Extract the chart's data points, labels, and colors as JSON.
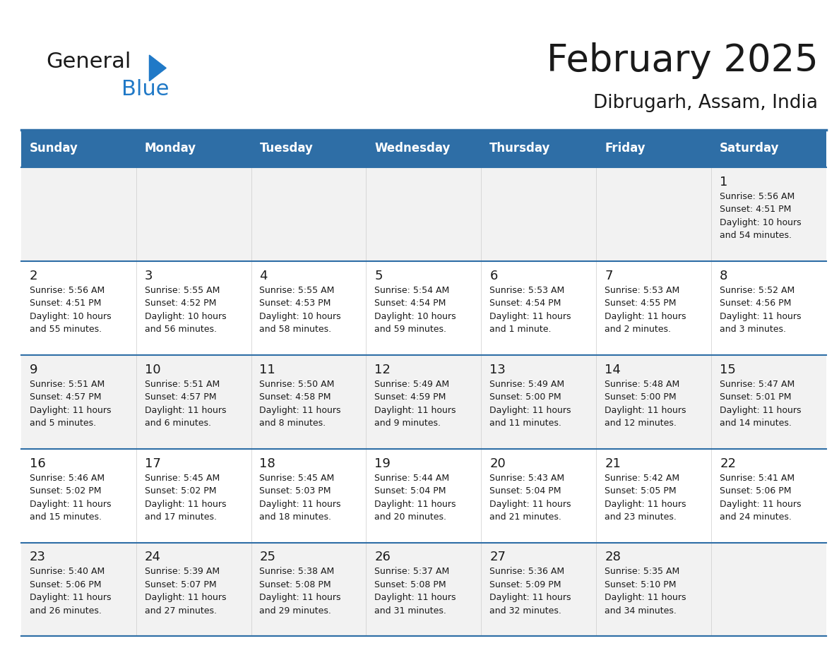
{
  "title": "February 2025",
  "subtitle": "Dibrugarh, Assam, India",
  "header_bg": "#2E6EA6",
  "header_text_color": "#FFFFFF",
  "cell_bg_odd": "#F2F2F2",
  "cell_bg_even": "#FFFFFF",
  "border_color": "#2E6EA6",
  "text_color": "#1a1a1a",
  "day_headers": [
    "Sunday",
    "Monday",
    "Tuesday",
    "Wednesday",
    "Thursday",
    "Friday",
    "Saturday"
  ],
  "weeks": [
    [
      {
        "day": "",
        "info": ""
      },
      {
        "day": "",
        "info": ""
      },
      {
        "day": "",
        "info": ""
      },
      {
        "day": "",
        "info": ""
      },
      {
        "day": "",
        "info": ""
      },
      {
        "day": "",
        "info": ""
      },
      {
        "day": "1",
        "info": "Sunrise: 5:56 AM\nSunset: 4:51 PM\nDaylight: 10 hours\nand 54 minutes."
      }
    ],
    [
      {
        "day": "2",
        "info": "Sunrise: 5:56 AM\nSunset: 4:51 PM\nDaylight: 10 hours\nand 55 minutes."
      },
      {
        "day": "3",
        "info": "Sunrise: 5:55 AM\nSunset: 4:52 PM\nDaylight: 10 hours\nand 56 minutes."
      },
      {
        "day": "4",
        "info": "Sunrise: 5:55 AM\nSunset: 4:53 PM\nDaylight: 10 hours\nand 58 minutes."
      },
      {
        "day": "5",
        "info": "Sunrise: 5:54 AM\nSunset: 4:54 PM\nDaylight: 10 hours\nand 59 minutes."
      },
      {
        "day": "6",
        "info": "Sunrise: 5:53 AM\nSunset: 4:54 PM\nDaylight: 11 hours\nand 1 minute."
      },
      {
        "day": "7",
        "info": "Sunrise: 5:53 AM\nSunset: 4:55 PM\nDaylight: 11 hours\nand 2 minutes."
      },
      {
        "day": "8",
        "info": "Sunrise: 5:52 AM\nSunset: 4:56 PM\nDaylight: 11 hours\nand 3 minutes."
      }
    ],
    [
      {
        "day": "9",
        "info": "Sunrise: 5:51 AM\nSunset: 4:57 PM\nDaylight: 11 hours\nand 5 minutes."
      },
      {
        "day": "10",
        "info": "Sunrise: 5:51 AM\nSunset: 4:57 PM\nDaylight: 11 hours\nand 6 minutes."
      },
      {
        "day": "11",
        "info": "Sunrise: 5:50 AM\nSunset: 4:58 PM\nDaylight: 11 hours\nand 8 minutes."
      },
      {
        "day": "12",
        "info": "Sunrise: 5:49 AM\nSunset: 4:59 PM\nDaylight: 11 hours\nand 9 minutes."
      },
      {
        "day": "13",
        "info": "Sunrise: 5:49 AM\nSunset: 5:00 PM\nDaylight: 11 hours\nand 11 minutes."
      },
      {
        "day": "14",
        "info": "Sunrise: 5:48 AM\nSunset: 5:00 PM\nDaylight: 11 hours\nand 12 minutes."
      },
      {
        "day": "15",
        "info": "Sunrise: 5:47 AM\nSunset: 5:01 PM\nDaylight: 11 hours\nand 14 minutes."
      }
    ],
    [
      {
        "day": "16",
        "info": "Sunrise: 5:46 AM\nSunset: 5:02 PM\nDaylight: 11 hours\nand 15 minutes."
      },
      {
        "day": "17",
        "info": "Sunrise: 5:45 AM\nSunset: 5:02 PM\nDaylight: 11 hours\nand 17 minutes."
      },
      {
        "day": "18",
        "info": "Sunrise: 5:45 AM\nSunset: 5:03 PM\nDaylight: 11 hours\nand 18 minutes."
      },
      {
        "day": "19",
        "info": "Sunrise: 5:44 AM\nSunset: 5:04 PM\nDaylight: 11 hours\nand 20 minutes."
      },
      {
        "day": "20",
        "info": "Sunrise: 5:43 AM\nSunset: 5:04 PM\nDaylight: 11 hours\nand 21 minutes."
      },
      {
        "day": "21",
        "info": "Sunrise: 5:42 AM\nSunset: 5:05 PM\nDaylight: 11 hours\nand 23 minutes."
      },
      {
        "day": "22",
        "info": "Sunrise: 5:41 AM\nSunset: 5:06 PM\nDaylight: 11 hours\nand 24 minutes."
      }
    ],
    [
      {
        "day": "23",
        "info": "Sunrise: 5:40 AM\nSunset: 5:06 PM\nDaylight: 11 hours\nand 26 minutes."
      },
      {
        "day": "24",
        "info": "Sunrise: 5:39 AM\nSunset: 5:07 PM\nDaylight: 11 hours\nand 27 minutes."
      },
      {
        "day": "25",
        "info": "Sunrise: 5:38 AM\nSunset: 5:08 PM\nDaylight: 11 hours\nand 29 minutes."
      },
      {
        "day": "26",
        "info": "Sunrise: 5:37 AM\nSunset: 5:08 PM\nDaylight: 11 hours\nand 31 minutes."
      },
      {
        "day": "27",
        "info": "Sunrise: 5:36 AM\nSunset: 5:09 PM\nDaylight: 11 hours\nand 32 minutes."
      },
      {
        "day": "28",
        "info": "Sunrise: 5:35 AM\nSunset: 5:10 PM\nDaylight: 11 hours\nand 34 minutes."
      },
      {
        "day": "",
        "info": ""
      }
    ]
  ],
  "logo_text1": "General",
  "logo_text2": "Blue",
  "logo_color1": "#1a1a1a",
  "logo_color2": "#2079C7",
  "logo_triangle_color": "#2079C7",
  "title_fontsize": 38,
  "subtitle_fontsize": 19,
  "header_fontsize": 12,
  "day_num_fontsize": 13,
  "cell_text_fontsize": 9
}
